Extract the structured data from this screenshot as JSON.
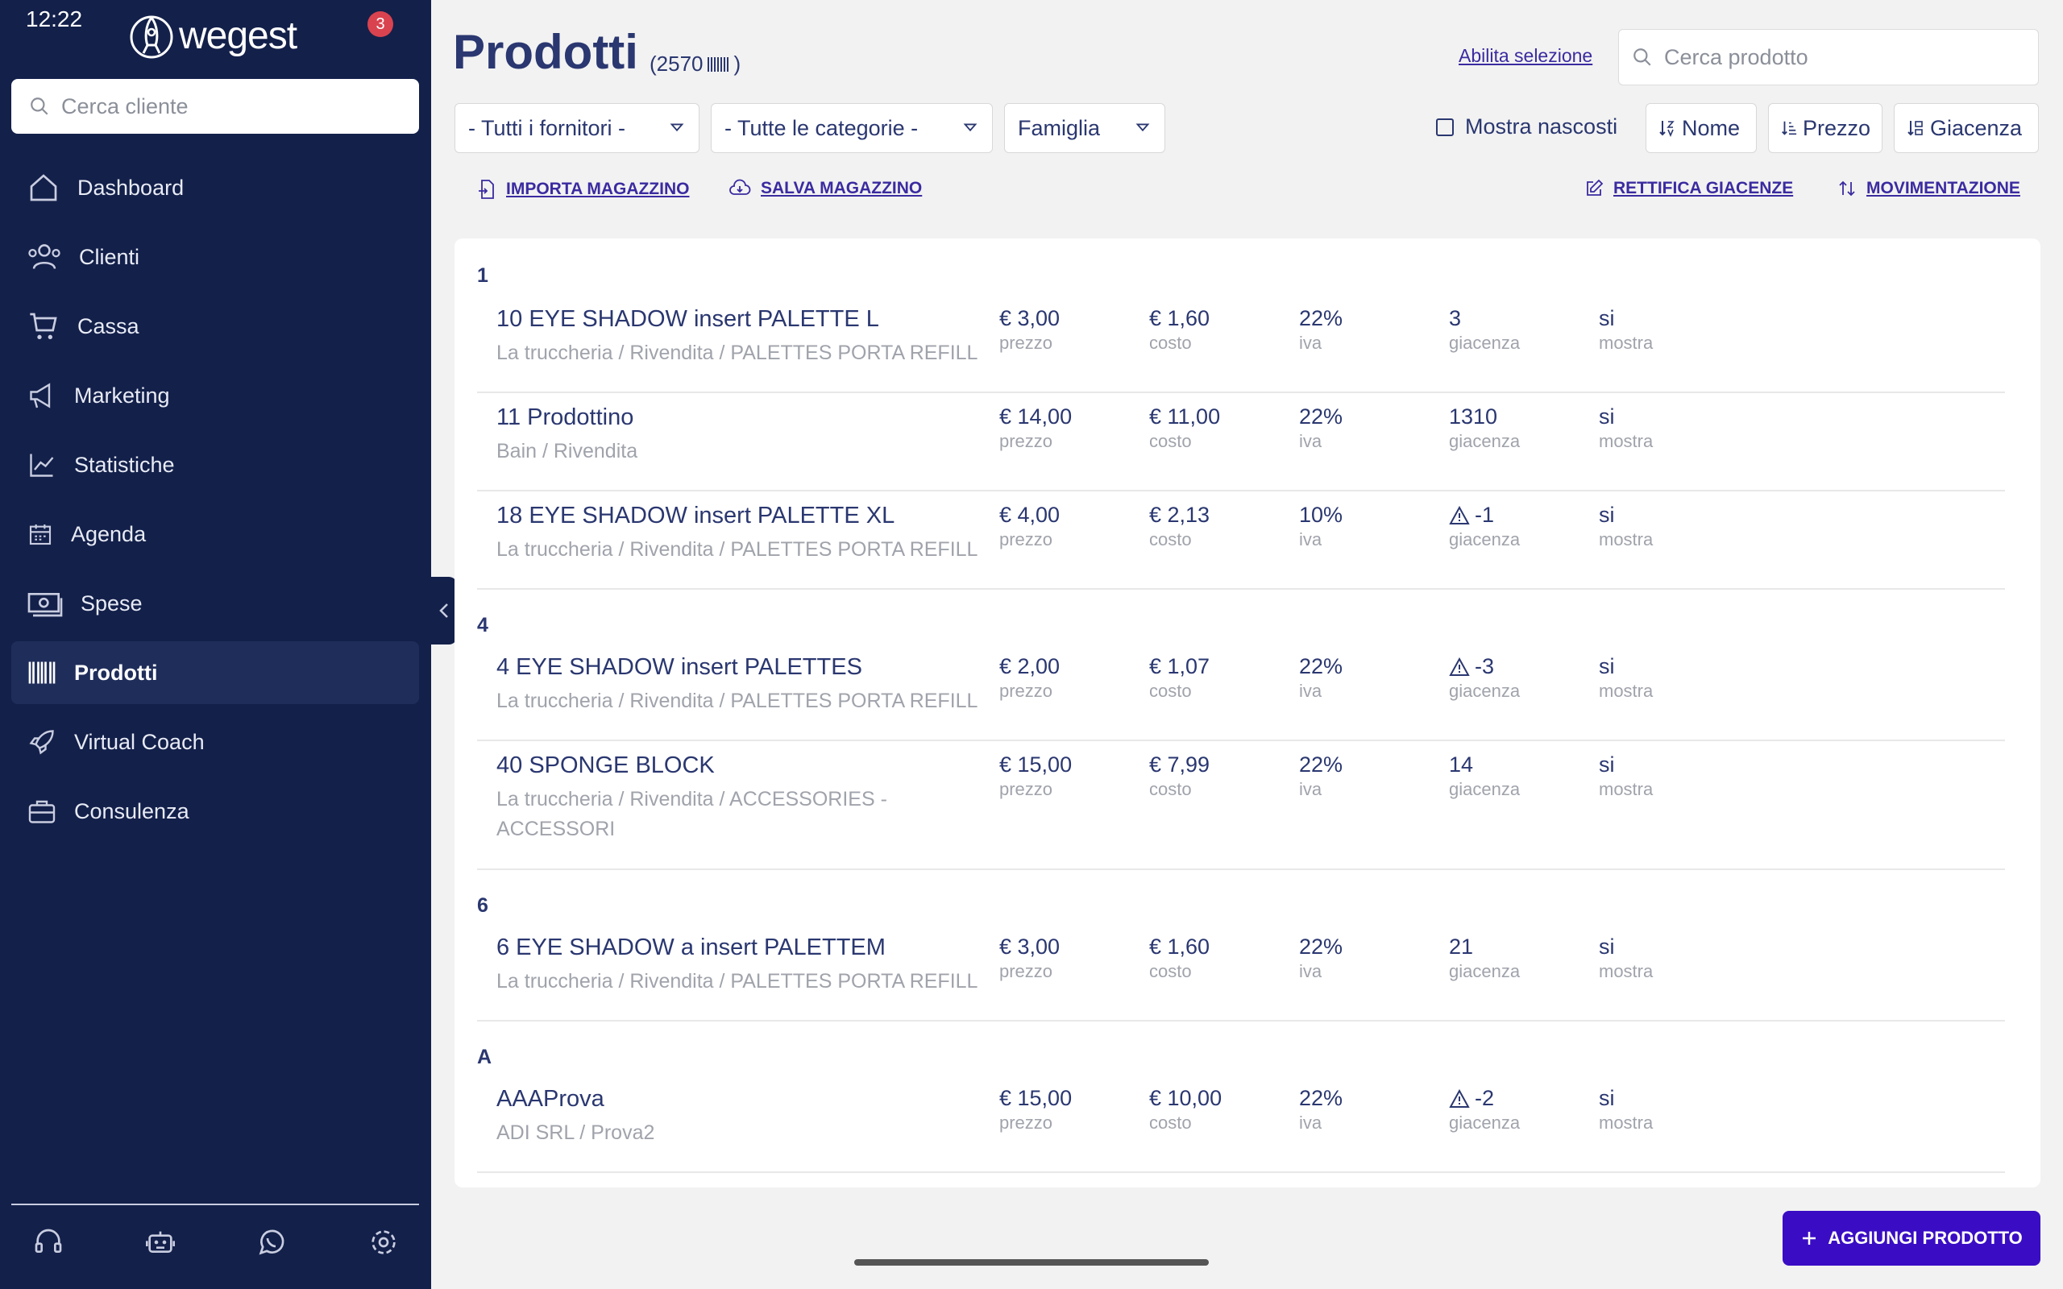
{
  "status_bar": {
    "time": "12:22"
  },
  "sidebar": {
    "logo_text": "wegest",
    "notification_count": "3",
    "client_search_placeholder": "Cerca cliente",
    "items": [
      {
        "label": "Dashboard",
        "icon": "home-icon"
      },
      {
        "label": "Clienti",
        "icon": "users-icon"
      },
      {
        "label": "Cassa",
        "icon": "cart-icon"
      },
      {
        "label": "Marketing",
        "icon": "megaphone-icon"
      },
      {
        "label": "Statistiche",
        "icon": "chart-icon"
      },
      {
        "label": "Agenda",
        "icon": "calendar-icon"
      },
      {
        "label": "Spese",
        "icon": "money-icon"
      },
      {
        "label": "Prodotti",
        "icon": "barcode-icon",
        "active": true
      },
      {
        "label": "Virtual Coach",
        "icon": "rocket-icon"
      },
      {
        "label": "Consulenza",
        "icon": "briefcase-icon"
      }
    ],
    "bottom_icons": [
      "headset-icon",
      "robot-icon",
      "whatsapp-icon",
      "settings-icon"
    ]
  },
  "header": {
    "title": "Prodotti",
    "count": "(2570",
    "count_close": ")",
    "enable_selection": "Abilita selezione",
    "search_placeholder": "Cerca prodotto"
  },
  "filters": {
    "suppliers": "- Tutti i fornitori -",
    "categories": "- Tutte le categorie -",
    "family": "Famiglia",
    "show_hidden": "Mostra nascosti",
    "sort_name": "Nome",
    "sort_price": "Prezzo",
    "sort_stock": "Giacenza"
  },
  "actions": {
    "import": "IMPORTA MAGAZZINO",
    "save": "SALVA MAGAZZINO",
    "adjust": "RETTIFICA GIACENZE",
    "movement": "MOVIMENTAZIONE"
  },
  "labels": {
    "price": "prezzo",
    "cost": "costo",
    "vat": "iva",
    "stock": "giacenza",
    "show": "mostra"
  },
  "groups": [
    {
      "letter": "1",
      "products": [
        {
          "name": "10 EYE SHADOW insert PALETTE L",
          "path": "La truccheria / Rivendita / PALETTES PORTA REFILL",
          "price": "€ 3,00",
          "cost": "€ 1,60",
          "vat": "22%",
          "stock": "3",
          "warning": false,
          "show": "si"
        },
        {
          "name": "11 Prodottino",
          "path": "Bain / Rivendita",
          "price": "€ 14,00",
          "cost": "€ 11,00",
          "vat": "22%",
          "stock": "1310",
          "warning": false,
          "show": "si"
        },
        {
          "name": "18 EYE SHADOW insert PALETTE XL",
          "path": "La truccheria / Rivendita / PALETTES PORTA REFILL",
          "price": "€ 4,00",
          "cost": "€ 2,13",
          "vat": "10%",
          "stock": "-1",
          "warning": true,
          "show": "si"
        }
      ]
    },
    {
      "letter": "4",
      "products": [
        {
          "name": "4 EYE SHADOW insert PALETTES",
          "path": "La truccheria / Rivendita / PALETTES PORTA REFILL",
          "price": "€ 2,00",
          "cost": "€ 1,07",
          "vat": "22%",
          "stock": "-3",
          "warning": true,
          "show": "si"
        },
        {
          "name": "40 SPONGE BLOCK",
          "path": "La truccheria / Rivendita / ACCESSORIES - ACCESSORI",
          "price": "€ 15,00",
          "cost": "€ 7,99",
          "vat": "22%",
          "stock": "14",
          "warning": false,
          "show": "si"
        }
      ]
    },
    {
      "letter": "6",
      "products": [
        {
          "name": "6 EYE SHADOW a insert PALETTEM",
          "path": "La truccheria / Rivendita / PALETTES PORTA REFILL",
          "price": "€ 3,00",
          "cost": "€ 1,60",
          "vat": "22%",
          "stock": "21",
          "warning": false,
          "show": "si"
        }
      ]
    },
    {
      "letter": "A",
      "products": [
        {
          "name": "AAAProva",
          "path": "ADI SRL / Prova2",
          "price": "€ 15,00",
          "cost": "€ 10,00",
          "vat": "22%",
          "stock": "-2",
          "warning": true,
          "show": "si"
        }
      ]
    }
  ],
  "add_button": "AGGIUNGI PRODOTTO",
  "colors": {
    "sidebar": "#13204a",
    "accent": "#3a0dc4",
    "title": "#2a3770",
    "badge": "#d9434f"
  }
}
